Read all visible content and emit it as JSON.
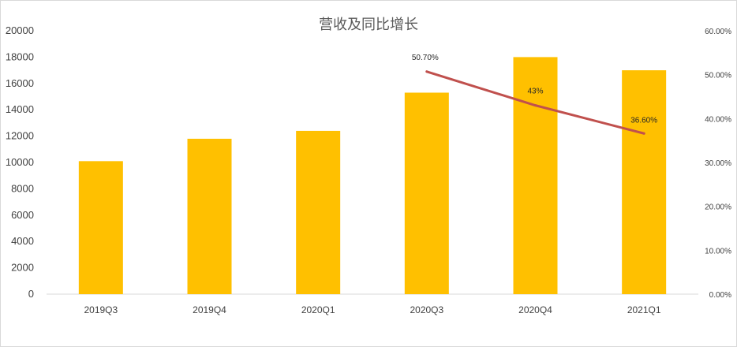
{
  "chart_data": {
    "type": "bar",
    "title": "营收及同比增长",
    "categories": [
      "2019Q3",
      "2019Q4",
      "2020Q1",
      "2020Q3",
      "2020Q4",
      "2021Q1"
    ],
    "series": [
      {
        "type": "bar",
        "axis": "left",
        "color": "#FFC000",
        "values": [
          10100,
          11800,
          12400,
          15300,
          18000,
          17000
        ]
      },
      {
        "type": "line",
        "axis": "right",
        "color": "#C0504D",
        "x": [
          "2020Q3",
          "2020Q4",
          "2021Q1"
        ],
        "values": [
          50.7,
          43,
          36.6
        ],
        "data_labels": [
          "50.70%",
          "43%",
          "36.60%"
        ]
      }
    ],
    "y_left": {
      "range": [
        0,
        20000
      ],
      "ticks": [
        "0",
        "2000",
        "4000",
        "6000",
        "8000",
        "10000",
        "12000",
        "14000",
        "16000",
        "18000",
        "20000"
      ]
    },
    "y_right": {
      "range": [
        0,
        60
      ],
      "ticks": [
        "0.00%",
        "10.00%",
        "20.00%",
        "30.00%",
        "40.00%",
        "50.00%",
        "60.00%"
      ]
    },
    "grid": false,
    "legend": "none"
  }
}
